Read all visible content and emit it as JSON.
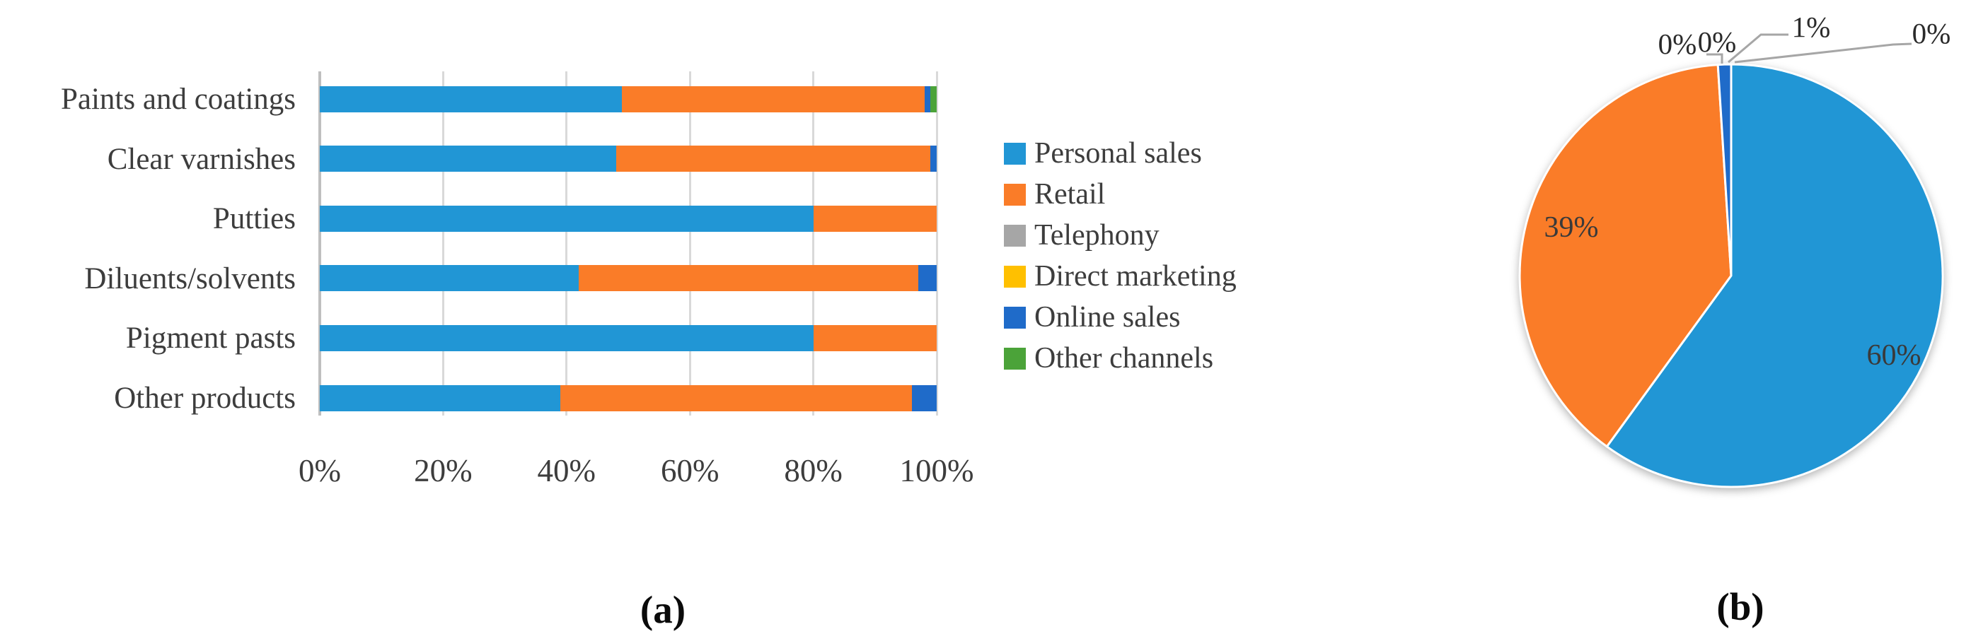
{
  "captions": {
    "a": "(a)",
    "b": "(b)"
  },
  "colors": {
    "personal_sales": "#2196d5",
    "retail": "#fa7c28",
    "telephony": "#a6a6a6",
    "direct_marketing": "#ffc000",
    "online_sales": "#1f6bc9",
    "other_channels": "#4ba339",
    "gridline": "#d9d9d9",
    "axis_line": "#bfbfbf",
    "text": "#3d3d3d",
    "leader_line": "#a6a6a6"
  },
  "chart_data": [
    {
      "type": "bar",
      "subtype": "horizontal_stacked_100pct",
      "categories": [
        "Paints and coatings",
        "Clear varnishes",
        "Putties",
        "Diluents/solvents",
        "Pigment pasts",
        "Other products"
      ],
      "series": [
        {
          "name": "Personal sales",
          "color_key": "personal_sales",
          "values": [
            49,
            48,
            80,
            42,
            80,
            39
          ]
        },
        {
          "name": "Retail",
          "color_key": "retail",
          "values": [
            49,
            51,
            20,
            55,
            20,
            57
          ]
        },
        {
          "name": "Telephony",
          "color_key": "telephony",
          "values": [
            0,
            0,
            0,
            0,
            0,
            0
          ]
        },
        {
          "name": "Direct marketing",
          "color_key": "direct_marketing",
          "values": [
            0,
            0,
            0,
            0,
            0,
            0
          ]
        },
        {
          "name": "Online sales",
          "color_key": "online_sales",
          "values": [
            1,
            1,
            0,
            3,
            0,
            4
          ]
        },
        {
          "name": "Other channels",
          "color_key": "other_channels",
          "values": [
            1,
            0,
            0,
            0,
            0,
            0
          ]
        }
      ],
      "x_ticks": [
        "0%",
        "20%",
        "40%",
        "60%",
        "80%",
        "100%"
      ],
      "xlim": [
        0,
        100
      ],
      "grid": true,
      "legend_position": "right"
    },
    {
      "type": "pie",
      "direction": "clockwise",
      "start_angle_deg": 0,
      "slices": [
        {
          "label": "Personal sales",
          "color_key": "personal_sales",
          "value": 60,
          "data_label": "60%"
        },
        {
          "label": "Retail",
          "color_key": "retail",
          "value": 39,
          "data_label": "39%"
        },
        {
          "label": "Telephony",
          "color_key": "telephony",
          "value": 0,
          "data_label": "0%"
        },
        {
          "label": "Direct marketing",
          "color_key": "direct_marketing",
          "value": 0,
          "data_label": "0%"
        },
        {
          "label": "Online sales",
          "color_key": "online_sales",
          "value": 1,
          "data_label": "1%"
        },
        {
          "label": "Other channels",
          "color_key": "other_channels",
          "value": 0,
          "data_label": "0%"
        }
      ]
    }
  ]
}
